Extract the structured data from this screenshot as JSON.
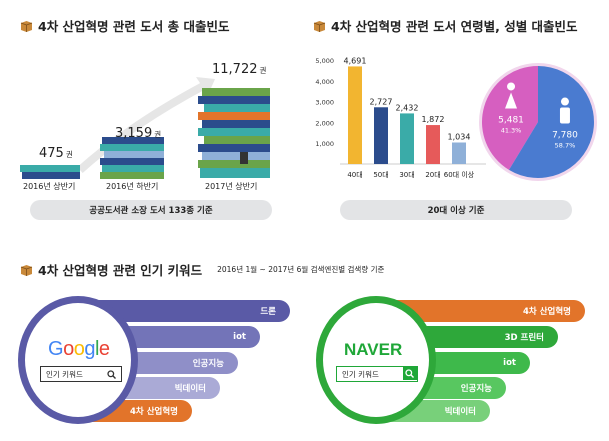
{
  "sections": {
    "books_total": {
      "title": "4차 산업혁명 관련 도서 총 대출빈도",
      "items": [
        {
          "value": "475",
          "unit": "권",
          "label": "2016년 상반기"
        },
        {
          "value": "3,159",
          "unit": "권",
          "label": "2016년 하반기"
        },
        {
          "value": "11,722",
          "unit": "권",
          "label": "2017년 상반기"
        }
      ],
      "note": "공공도서관 소장 도서 133종 기준"
    },
    "age_gender": {
      "title": "4차 산업혁명 관련 도서 연령별, 성별 대출빈도",
      "note": "20대 이상 기준"
    },
    "keywords": {
      "title": "4차 산업혁명 관련 인기 키워드",
      "subtitle": "2016년 1월 ~ 2017년 6월 검색엔진별 검색량 기준",
      "google": {
        "logo": "Google",
        "search_placeholder": "인기 키워드",
        "bars": [
          "드론",
          "iot",
          "인공지능",
          "빅데이터",
          "4차 산업혁명"
        ]
      },
      "naver": {
        "logo": "NAVER",
        "search_placeholder": "인기 키워드",
        "bars": [
          "4차 산업혁명",
          "3D 프린터",
          "iot",
          "인공지능",
          "빅데이터"
        ]
      }
    }
  },
  "chart_data": [
    {
      "type": "bar",
      "categories": [
        "40대",
        "50대",
        "30대",
        "20대",
        "60대 이상"
      ],
      "values": [
        4691,
        2727,
        2432,
        1872,
        1034
      ],
      "value_labels": [
        "4,691",
        "2,727",
        "2,432",
        "1,872",
        "1,034"
      ],
      "ylim": [
        0,
        5000
      ],
      "yticks": [
        "5,000",
        "4,000",
        "3,000",
        "2,000",
        "1,000"
      ],
      "colors": [
        "#f2b530",
        "#2b4c8c",
        "#3aaba8",
        "#e65a5a",
        "#8fb0d8"
      ]
    },
    {
      "type": "pie",
      "slices": [
        {
          "value": 5481,
          "value_label": "5,481",
          "percent": "41.3%",
          "color": "#d65fc0"
        },
        {
          "value": 7780,
          "value_label": "7,780",
          "percent": "58.7%",
          "color": "#4a7bd0"
        }
      ]
    }
  ],
  "colors": {
    "google_bars": [
      "#5a5aa6",
      "#7374b8",
      "#8f8fc8",
      "#aaaad6",
      "#e2742a"
    ],
    "naver_bars": [
      "#e2742a",
      "#2ea83a",
      "#3eb94b",
      "#58c760",
      "#78d07a"
    ]
  }
}
